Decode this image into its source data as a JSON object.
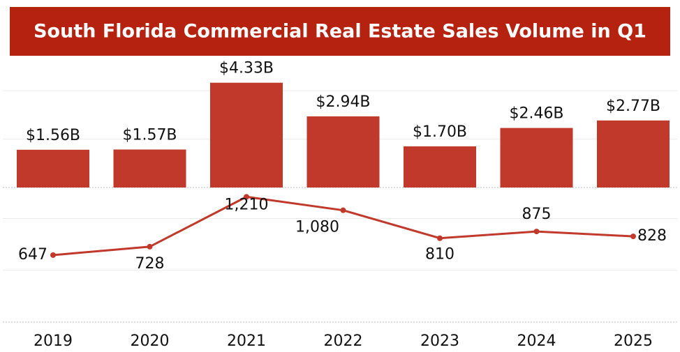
{
  "chart_data": {
    "type": "bar",
    "title": "South Florida Commercial Real Estate Sales Volume  in Q1",
    "categories": [
      "2019",
      "2020",
      "2021",
      "2022",
      "2023",
      "2024",
      "2025"
    ],
    "series": [
      {
        "type": "bar",
        "color": "#c0392b",
        "values": [
          1.56,
          1.57,
          4.33,
          2.94,
          1.7,
          2.46,
          2.77
        ],
        "value_labels": [
          "$1.56B",
          "$1.57B",
          "$4.33B",
          "$2.94B",
          "$1.70B",
          "$2.46B",
          "$2.77B"
        ]
      },
      {
        "type": "line",
        "axis": "y2",
        "color": "#c0392b",
        "values": [
          647,
          728,
          1210,
          1080,
          810,
          875,
          828
        ],
        "value_labels": [
          "647",
          "728",
          "1,210",
          "1,080",
          "810",
          "875",
          "828"
        ]
      }
    ],
    "ylim": [
      0,
      5.3
    ],
    "yticks": [
      0,
      2,
      4
    ],
    "y2lim": [
      0,
      1300
    ],
    "y2ticks": [
      0,
      500,
      1000
    ],
    "grid": true
  }
}
